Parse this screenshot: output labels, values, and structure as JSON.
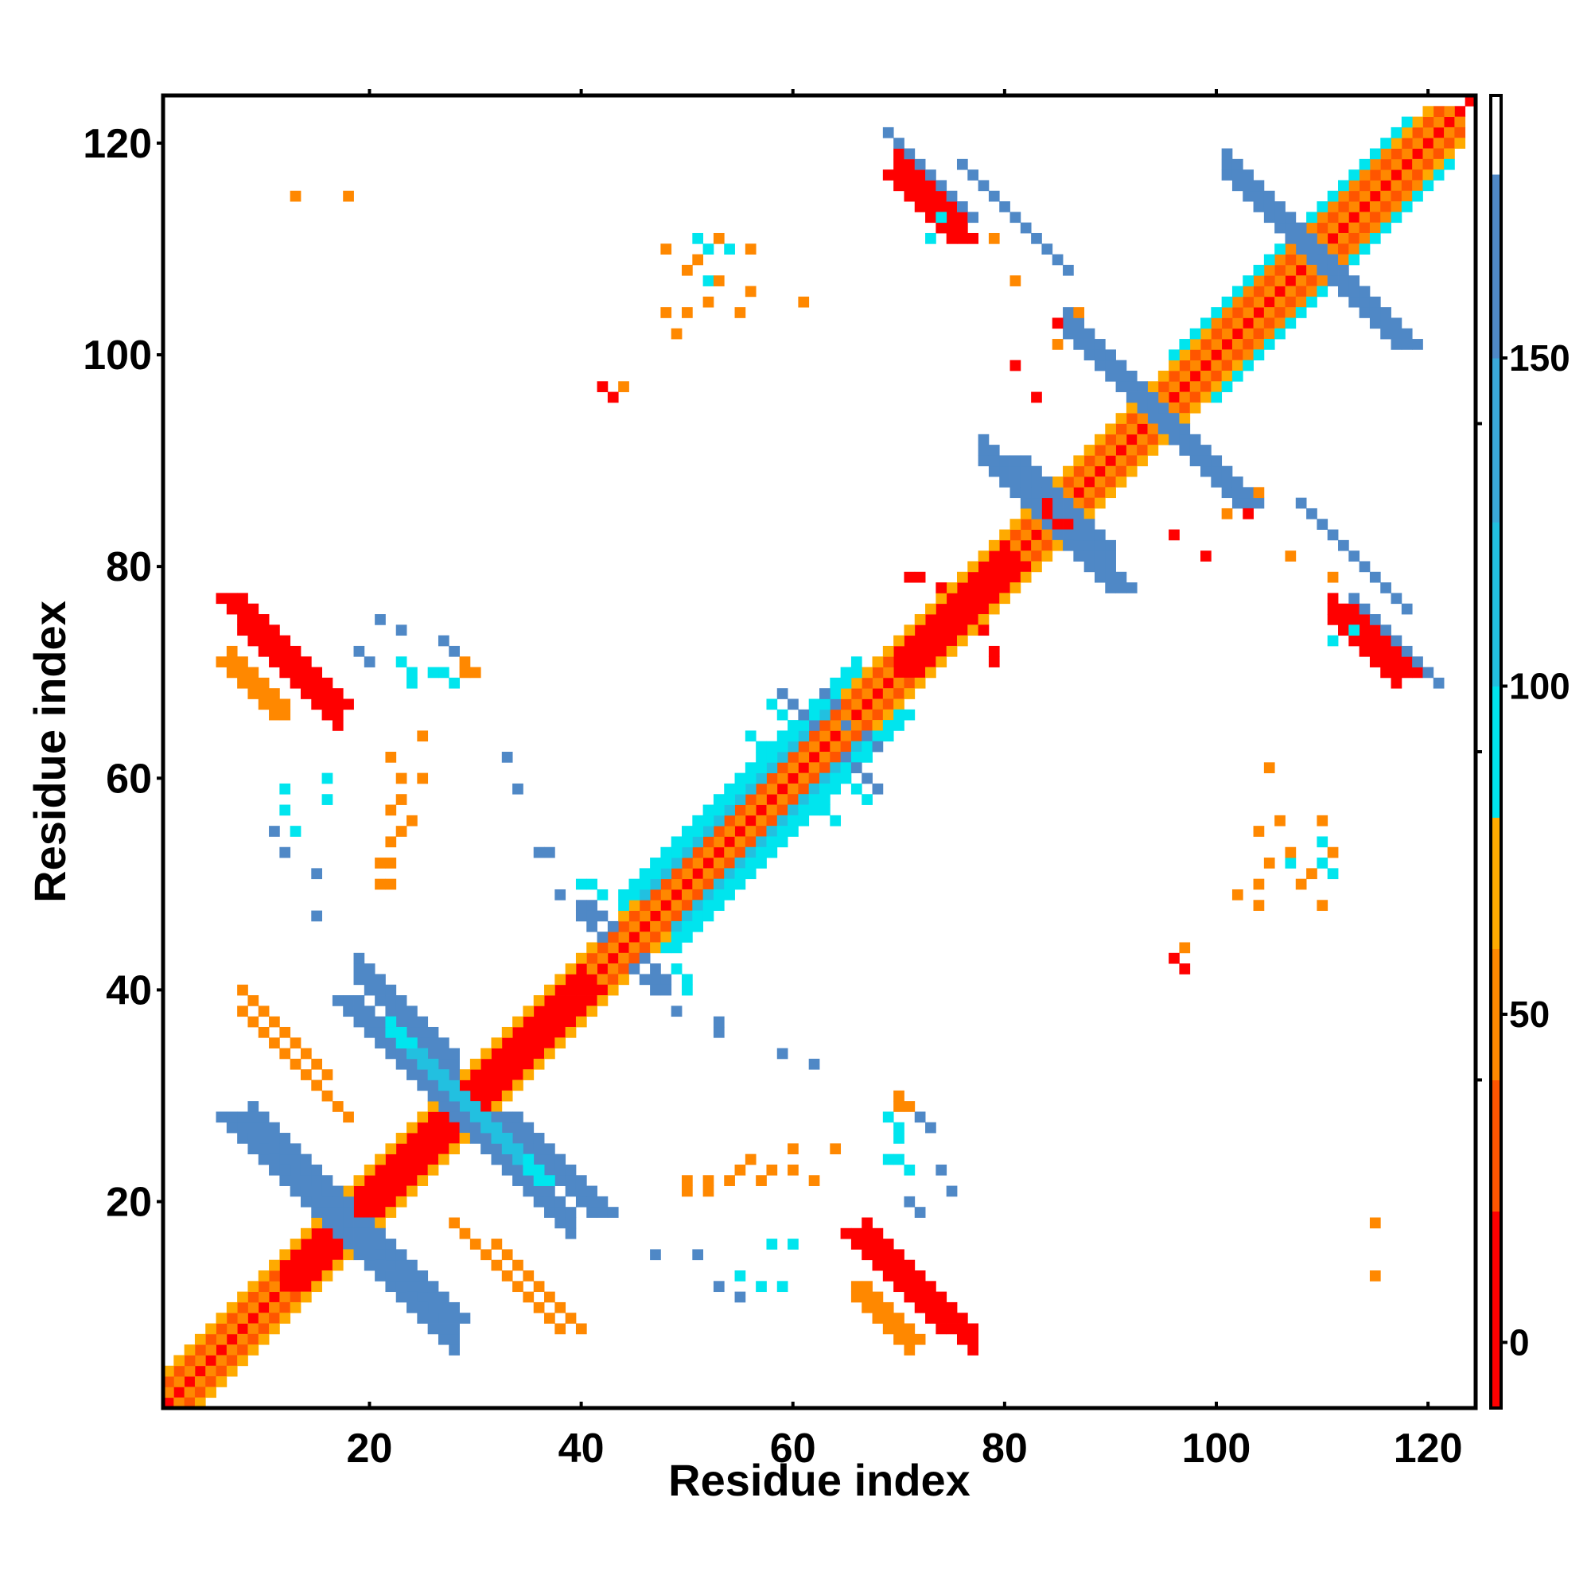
{
  "chart_data": {
    "type": "heatmap",
    "xlabel": "Residue index",
    "ylabel": "Residue index",
    "xlim": [
      1,
      124
    ],
    "ylim": [
      1,
      124
    ],
    "x_ticks": [
      20,
      40,
      60,
      80,
      100,
      120
    ],
    "y_ticks": [
      20,
      40,
      60,
      80,
      100,
      120
    ],
    "colorbar": {
      "range": [
        -10,
        190
      ],
      "ticks": [
        0,
        50,
        100,
        150
      ],
      "segments": [
        {
          "from": -10,
          "to": 20,
          "color": "#ff0000"
        },
        {
          "from": 20,
          "to": 40,
          "color": "#ff5500"
        },
        {
          "from": 40,
          "to": 60,
          "color": "#ff8800"
        },
        {
          "from": 60,
          "to": 80,
          "color": "#ffaa00"
        },
        {
          "from": 80,
          "to": 100,
          "color": "#00e5ee"
        },
        {
          "from": 100,
          "to": 125,
          "color": "#22c0e0"
        },
        {
          "from": 125,
          "to": 150,
          "color": "#3aa8d8"
        },
        {
          "from": 150,
          "to": 178,
          "color": "#4f88c6"
        },
        {
          "from": 178,
          "to": 190,
          "color": "#ffffff"
        }
      ]
    },
    "features": [
      {
        "kind": "diag",
        "from": 1,
        "to": 124,
        "offset": 0,
        "value": 5
      },
      {
        "kind": "diag",
        "from": 1,
        "to": 122,
        "offset": 1,
        "value": 45
      },
      {
        "kind": "diag",
        "from": 1,
        "to": 121,
        "offset": 2,
        "value": 25
      },
      {
        "kind": "diag",
        "from": 1,
        "to": 120,
        "offset": 3,
        "value": 65
      },
      {
        "kind": "diag",
        "from": 12,
        "to": 40,
        "offset": 1,
        "value": 5
      },
      {
        "kind": "diag",
        "from": 12,
        "to": 40,
        "offset": 2,
        "value": 8
      },
      {
        "kind": "diag",
        "from": 44,
        "to": 66,
        "offset": 4,
        "value": 95
      },
      {
        "kind": "diag",
        "from": 44,
        "to": 66,
        "offset": 5,
        "value": 90
      },
      {
        "kind": "diag",
        "from": 46,
        "to": 64,
        "offset": 3,
        "value": 105
      },
      {
        "kind": "diag",
        "from": 70,
        "to": 80,
        "offset": 1,
        "value": 5
      },
      {
        "kind": "diag",
        "from": 70,
        "to": 80,
        "offset": 2,
        "value": 10
      },
      {
        "kind": "diag",
        "from": 96,
        "to": 118,
        "offset": 4,
        "value": 95
      },
      {
        "kind": "diag",
        "from": 100,
        "to": 116,
        "offset": 3,
        "value": 40
      },
      {
        "kind": "anti",
        "x1": 19,
        "x2": 28,
        "sum": 60,
        "width": 3,
        "value": 165
      },
      {
        "kind": "anti",
        "x1": 9,
        "x2": 18,
        "sum": 36,
        "width": 3,
        "value": 160
      },
      {
        "kind": "anti",
        "x1": 28,
        "x2": 39,
        "sum": 56,
        "width": 3,
        "value": 160
      },
      {
        "kind": "anti",
        "x1": 16,
        "x2": 28,
        "sum": 34,
        "width": 3,
        "value": 160
      },
      {
        "kind": "anti",
        "x1": 22,
        "x2": 28,
        "sum": 58,
        "width": 2,
        "value": 95
      },
      {
        "kind": "anti",
        "x1": 28,
        "x2": 34,
        "sum": 58,
        "width": 2,
        "value": 100
      },
      {
        "kind": "anti",
        "x1": 78,
        "x2": 84,
        "sum": 168,
        "width": 3,
        "value": 160
      },
      {
        "kind": "anti",
        "x1": 84,
        "x2": 90,
        "sum": 170,
        "width": 3,
        "value": 155
      },
      {
        "kind": "anti",
        "x1": 86,
        "x2": 93,
        "sum": 188,
        "width": 3,
        "value": 150
      },
      {
        "kind": "anti",
        "x1": 94,
        "x2": 101,
        "sum": 188,
        "width": 3,
        "value": 150
      },
      {
        "kind": "anti",
        "x1": 101,
        "x2": 110,
        "sum": 218,
        "width": 3,
        "value": 150
      },
      {
        "kind": "anti",
        "x1": 106,
        "x2": 113,
        "sum": 218,
        "width": 3,
        "value": 150
      },
      {
        "kind": "anti",
        "x1": 8,
        "x2": 17,
        "sum": 82,
        "width": 3,
        "value": 5
      },
      {
        "kind": "anti",
        "x1": 7,
        "x2": 12,
        "sum": 78,
        "width": 2,
        "value": 55
      },
      {
        "kind": "anti",
        "x1": 67,
        "x2": 77,
        "sum": 83,
        "width": 3,
        "value": 5
      },
      {
        "kind": "anti",
        "x1": 66,
        "x2": 71,
        "sum": 77,
        "width": 2,
        "value": 55
      },
      {
        "kind": "anti",
        "x1": 70,
        "x2": 76,
        "sum": 188,
        "width": 3,
        "value": 5
      },
      {
        "kind": "anti",
        "x1": 111,
        "x2": 117,
        "sum": 186,
        "width": 3,
        "value": 5
      },
      {
        "kind": "anti",
        "x1": 76,
        "x2": 86,
        "sum": 194,
        "width": 1,
        "value": 150
      },
      {
        "kind": "anti",
        "x1": 113,
        "x2": 121,
        "sum": 190,
        "width": 1,
        "value": 150
      },
      {
        "kind": "anti",
        "x1": 8,
        "x2": 16,
        "sum": 48,
        "width": 1,
        "value": 45
      },
      {
        "kind": "anti",
        "x1": 28,
        "x2": 38,
        "sum": 46,
        "width": 1,
        "value": 45
      },
      {
        "kind": "cells",
        "value": 160,
        "points": [
          [
            41,
            48
          ],
          [
            42,
            47
          ],
          [
            43,
            46
          ],
          [
            41,
            47
          ],
          [
            60,
            67
          ],
          [
            61,
            66
          ],
          [
            62,
            65
          ],
          [
            59,
            68
          ],
          [
            63,
            68
          ],
          [
            64,
            67
          ],
          [
            65,
            65
          ]
        ]
      },
      {
        "kind": "cells",
        "value": 150,
        "points": [
          [
            46,
            41
          ],
          [
            47,
            40
          ],
          [
            45,
            42
          ],
          [
            33,
            62
          ],
          [
            34,
            59
          ],
          [
            36,
            53
          ],
          [
            37,
            53
          ],
          [
            38,
            49
          ],
          [
            40,
            48
          ],
          [
            21,
            75
          ],
          [
            23,
            74
          ],
          [
            27,
            73
          ],
          [
            28,
            72
          ],
          [
            71,
            20
          ],
          [
            72,
            19
          ],
          [
            47,
            15
          ],
          [
            51,
            15
          ],
          [
            53,
            12
          ],
          [
            55,
            11
          ]
        ]
      },
      {
        "kind": "cells",
        "value": 95,
        "points": [
          [
            27,
            70
          ],
          [
            28,
            69
          ],
          [
            16,
            58
          ],
          [
            16,
            60
          ],
          [
            40,
            50
          ],
          [
            41,
            50
          ],
          [
            42,
            49
          ],
          [
            63,
            57
          ],
          [
            64,
            56
          ],
          [
            66,
            59
          ],
          [
            67,
            58
          ],
          [
            69,
            24
          ],
          [
            70,
            24
          ],
          [
            70,
            26
          ],
          [
            71,
            23
          ],
          [
            55,
            13
          ],
          [
            57,
            12
          ],
          [
            59,
            12
          ],
          [
            110,
            52
          ],
          [
            111,
            51
          ],
          [
            110,
            56
          ],
          [
            107,
            52
          ],
          [
            73,
            111
          ],
          [
            74,
            113
          ],
          [
            52,
            110
          ],
          [
            54,
            110
          ]
        ]
      },
      {
        "kind": "cells",
        "value": 45,
        "points": [
          [
            30,
            70
          ],
          [
            29,
            71
          ],
          [
            22,
            62
          ],
          [
            23,
            60
          ],
          [
            24,
            56
          ],
          [
            23,
            55
          ],
          [
            22,
            52
          ],
          [
            22,
            50
          ],
          [
            50,
            21
          ],
          [
            52,
            21
          ],
          [
            54,
            22
          ],
          [
            57,
            22
          ],
          [
            58,
            23
          ],
          [
            60,
            25
          ],
          [
            64,
            25
          ],
          [
            70,
            29
          ],
          [
            49,
            102
          ],
          [
            50,
            104
          ],
          [
            51,
            109
          ],
          [
            53,
            107
          ],
          [
            53,
            111
          ],
          [
            56,
            106
          ],
          [
            56,
            110
          ],
          [
            61,
            105
          ],
          [
            87,
            104
          ],
          [
            85,
            101
          ],
          [
            96,
            43
          ],
          [
            97,
            44
          ],
          [
            104,
            55
          ],
          [
            105,
            52
          ],
          [
            108,
            50
          ],
          [
            104,
            48
          ],
          [
            110,
            48
          ],
          [
            115,
            13
          ],
          [
            18,
            115
          ],
          [
            107,
            81
          ],
          [
            111,
            79
          ]
        ]
      },
      {
        "kind": "cells",
        "value": 5,
        "points": [
          [
            42,
            97
          ],
          [
            43,
            96
          ],
          [
            85,
            103
          ],
          [
            96,
            83
          ],
          [
            99,
            81
          ],
          [
            85,
            84
          ],
          [
            86,
            84
          ],
          [
            71,
            79
          ],
          [
            72,
            79
          ],
          [
            74,
            78
          ]
        ]
      }
    ]
  }
}
